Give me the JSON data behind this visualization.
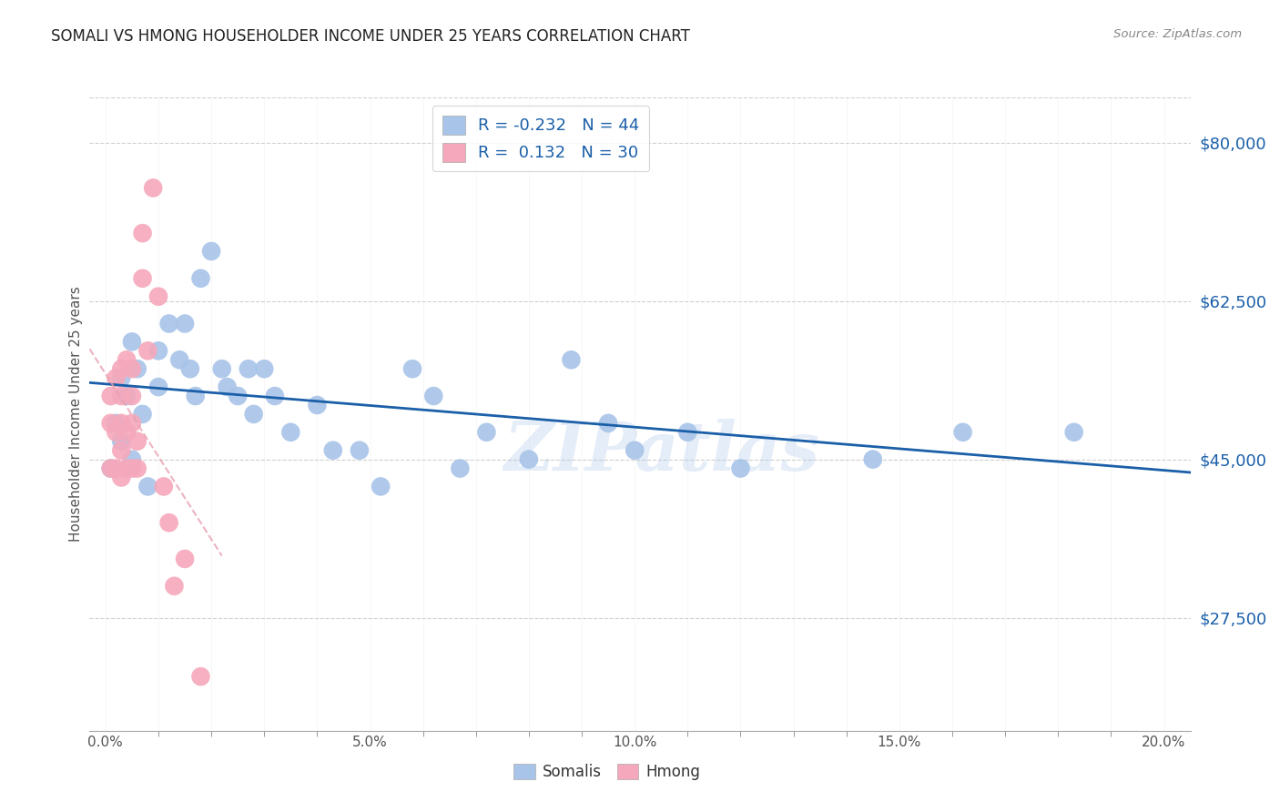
{
  "title": "SOMALI VS HMONG HOUSEHOLDER INCOME UNDER 25 YEARS CORRELATION CHART",
  "source": "Source: ZipAtlas.com",
  "ylabel": "Householder Income Under 25 years",
  "xlabel_ticks": [
    "0.0%",
    "",
    "",
    "",
    "",
    "5.0%",
    "",
    "",
    "",
    "",
    "10.0%",
    "",
    "",
    "",
    "",
    "15.0%",
    "",
    "",
    "",
    "",
    "20.0%"
  ],
  "xlabel_vals": [
    0.0,
    0.01,
    0.02,
    0.03,
    0.04,
    0.05,
    0.06,
    0.07,
    0.08,
    0.09,
    0.1,
    0.11,
    0.12,
    0.13,
    0.14,
    0.15,
    0.16,
    0.17,
    0.18,
    0.19,
    0.2
  ],
  "xlabel_main_ticks": [
    0.0,
    0.05,
    0.1,
    0.15,
    0.2
  ],
  "xlabel_main_labels": [
    "0.0%",
    "5.0%",
    "10.0%",
    "15.0%",
    "20.0%"
  ],
  "ylabel_vals": [
    80000,
    62500,
    45000,
    27500
  ],
  "ylabel_labels": [
    "$80,000",
    "$62,500",
    "$45,000",
    "$27,500"
  ],
  "xlim": [
    -0.003,
    0.205
  ],
  "ylim": [
    15000,
    85000
  ],
  "somali_color": "#a8c4e8",
  "hmong_color": "#f5a8bb",
  "somali_line_color": "#1a5fa8",
  "hmong_line_color": "#e8a0b0",
  "grid_color": "#d0d0d0",
  "watermark": "ZIPatlas",
  "legend_line1": "R = -0.232   N = 44",
  "legend_line2": "R =  0.132   N = 30",
  "somali_x": [
    0.001,
    0.002,
    0.003,
    0.003,
    0.004,
    0.005,
    0.005,
    0.006,
    0.007,
    0.008,
    0.01,
    0.01,
    0.012,
    0.014,
    0.015,
    0.016,
    0.017,
    0.018,
    0.02,
    0.022,
    0.023,
    0.025,
    0.027,
    0.028,
    0.03,
    0.032,
    0.035,
    0.04,
    0.043,
    0.048,
    0.052,
    0.058,
    0.062,
    0.067,
    0.072,
    0.08,
    0.088,
    0.095,
    0.1,
    0.11,
    0.12,
    0.145,
    0.162,
    0.183
  ],
  "somali_y": [
    44000,
    49000,
    47000,
    54000,
    52000,
    45000,
    58000,
    55000,
    50000,
    42000,
    57000,
    53000,
    60000,
    56000,
    60000,
    55000,
    52000,
    65000,
    68000,
    55000,
    53000,
    52000,
    55000,
    50000,
    55000,
    52000,
    48000,
    51000,
    46000,
    46000,
    42000,
    55000,
    52000,
    44000,
    48000,
    45000,
    56000,
    49000,
    46000,
    48000,
    44000,
    45000,
    48000,
    48000
  ],
  "hmong_x": [
    0.001,
    0.001,
    0.001,
    0.002,
    0.002,
    0.002,
    0.003,
    0.003,
    0.003,
    0.003,
    0.003,
    0.004,
    0.004,
    0.004,
    0.005,
    0.005,
    0.005,
    0.005,
    0.006,
    0.006,
    0.007,
    0.007,
    0.008,
    0.009,
    0.01,
    0.011,
    0.012,
    0.013,
    0.015,
    0.018
  ],
  "hmong_y": [
    44000,
    49000,
    52000,
    44000,
    54000,
    48000,
    52000,
    49000,
    46000,
    43000,
    55000,
    44000,
    48000,
    56000,
    44000,
    49000,
    52000,
    55000,
    47000,
    44000,
    65000,
    70000,
    57000,
    75000,
    63000,
    42000,
    38000,
    31000,
    34000,
    21000
  ]
}
